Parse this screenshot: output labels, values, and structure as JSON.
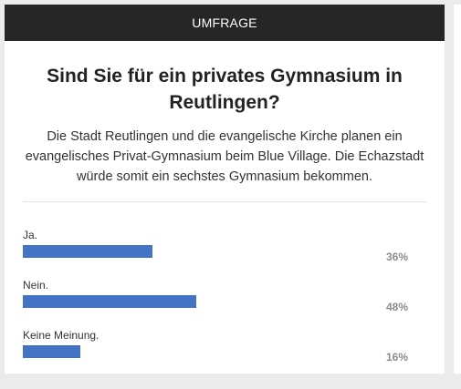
{
  "poll": {
    "header": "UMFRAGE",
    "question": "Sind Sie für ein privates Gymnasium in Reutlingen?",
    "description": "Die Stadt Reutlingen und die evangelische Kirche planen ein evangelisches Privat-Gymnasium beim Blue Village. Die Echazstadt würde somit ein sechstes Gymnasium bekommen.",
    "options": [
      {
        "label": "Ja.",
        "percent_label": "36%",
        "value": 36
      },
      {
        "label": "Nein.",
        "percent_label": "48%",
        "value": 48
      },
      {
        "label": "Keine Meinung.",
        "percent_label": "16%",
        "value": 16
      }
    ],
    "bar_color": "#4472c4",
    "header_color": "#262626"
  }
}
